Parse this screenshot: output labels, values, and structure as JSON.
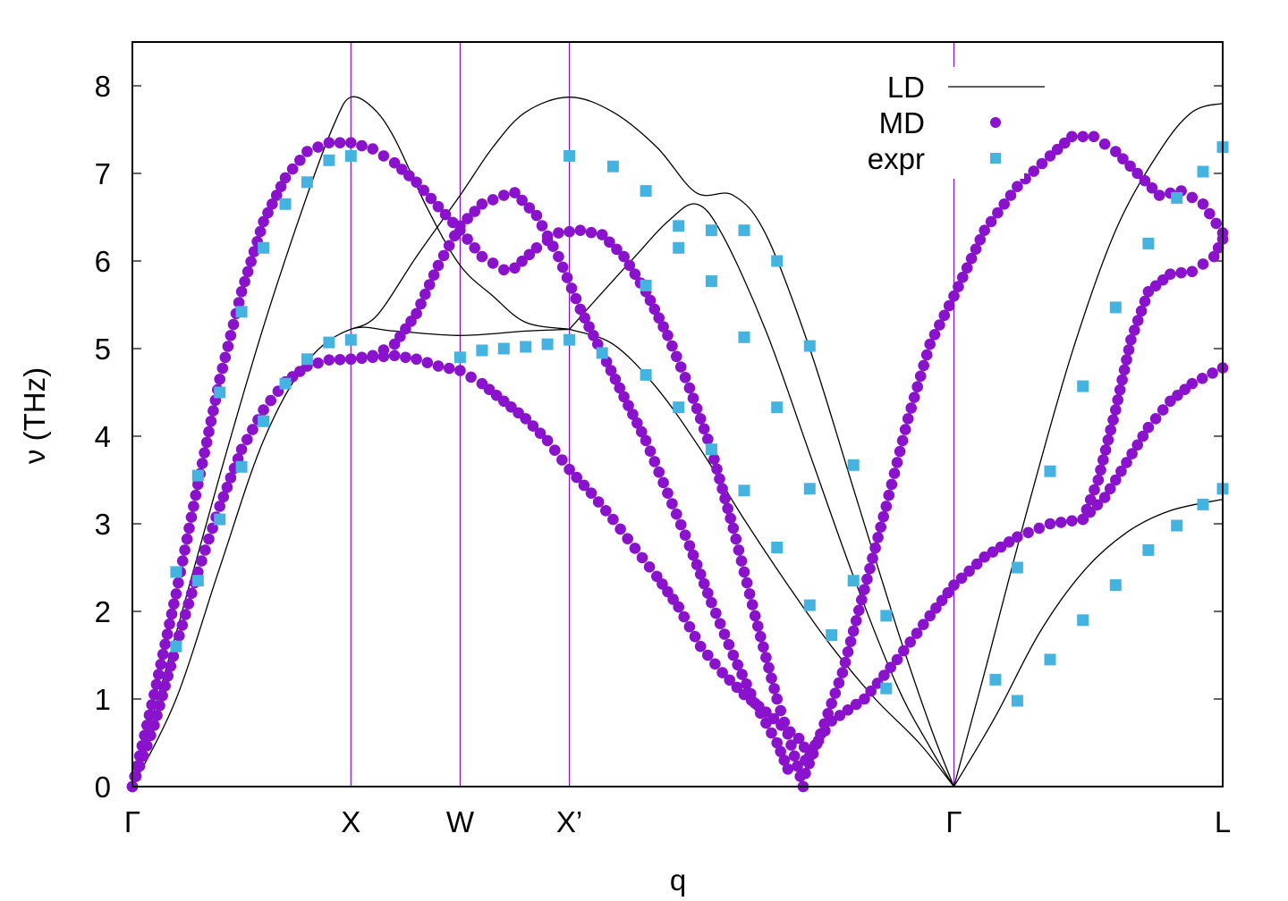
{
  "chart_data": {
    "type": "scatter",
    "title": "",
    "xlabel": "q",
    "ylabel": "ν (THz)",
    "ylim": [
      0,
      8.5
    ],
    "xlim": [
      0,
      4.99
    ],
    "x_ticks": [
      {
        "label": "Γ",
        "value": 0
      },
      {
        "label": "X",
        "value": 1.0
      },
      {
        "label": "W",
        "value": 1.5
      },
      {
        "label": "X’",
        "value": 2.0
      },
      {
        "label": "Γ",
        "value": 3.76
      },
      {
        "label": "L",
        "value": 4.99
      }
    ],
    "y_ticks": [
      0,
      1,
      2,
      3,
      4,
      5,
      6,
      7,
      8
    ],
    "vlines": [
      1.0,
      1.5,
      2.0,
      3.76
    ],
    "colors": {
      "LD": "#000000",
      "MD": "#8a12cc",
      "expr": "#45b3e0",
      "vline": "#8a12cc"
    },
    "legend": {
      "position": "top-right",
      "entries": [
        {
          "label": "LD",
          "marker": "line"
        },
        {
          "label": "MD",
          "marker": "circle"
        },
        {
          "label": "expr",
          "marker": "square"
        }
      ]
    },
    "series": [
      {
        "name": "LD",
        "kind": "line",
        "branches": [
          [
            [
              0,
              0
            ],
            [
              0.2,
              1.75
            ],
            [
              0.4,
              3.55
            ],
            [
              0.6,
              5.25
            ],
            [
              0.8,
              6.75
            ],
            [
              0.93,
              7.6
            ],
            [
              1.0,
              7.87
            ],
            [
              1.1,
              7.75
            ],
            [
              1.2,
              7.4
            ],
            [
              1.35,
              6.6
            ],
            [
              1.5,
              5.95
            ],
            [
              1.65,
              5.6
            ],
            [
              1.8,
              5.3
            ],
            [
              2.0,
              5.22
            ]
          ],
          [
            [
              0,
              0
            ],
            [
              0.2,
              1.0
            ],
            [
              0.4,
              2.5
            ],
            [
              0.6,
              3.95
            ],
            [
              0.8,
              4.85
            ],
            [
              1.0,
              5.22
            ],
            [
              1.2,
              5.2
            ],
            [
              1.5,
              5.15
            ],
            [
              1.8,
              5.2
            ],
            [
              2.0,
              5.22
            ]
          ],
          [
            [
              1.0,
              5.22
            ],
            [
              1.12,
              5.38
            ],
            [
              1.3,
              6.05
            ],
            [
              1.5,
              6.75
            ],
            [
              1.65,
              7.3
            ],
            [
              1.8,
              7.7
            ],
            [
              2.0,
              7.87
            ],
            [
              2.2,
              7.7
            ],
            [
              2.4,
              7.3
            ],
            [
              2.58,
              6.78
            ],
            [
              2.75,
              6.75
            ],
            [
              2.9,
              6.3
            ],
            [
              3.1,
              5.0
            ],
            [
              3.3,
              3.4
            ],
            [
              3.5,
              1.8
            ],
            [
              3.65,
              0.7
            ],
            [
              3.76,
              0
            ]
          ],
          [
            [
              2.0,
              5.22
            ],
            [
              2.1,
              5.5
            ],
            [
              2.3,
              6.05
            ],
            [
              2.45,
              6.45
            ],
            [
              2.58,
              6.65
            ],
            [
              2.7,
              6.3
            ],
            [
              2.9,
              5.2
            ],
            [
              3.1,
              3.8
            ],
            [
              3.3,
              2.4
            ],
            [
              3.5,
              1.15
            ],
            [
              3.65,
              0.45
            ],
            [
              3.76,
              0
            ]
          ],
          [
            [
              2.0,
              5.22
            ],
            [
              2.2,
              5.05
            ],
            [
              2.4,
              4.55
            ],
            [
              2.6,
              3.85
            ],
            [
              2.8,
              3.05
            ],
            [
              3.0,
              2.3
            ],
            [
              3.2,
              1.6
            ],
            [
              3.4,
              1.0
            ],
            [
              3.6,
              0.5
            ],
            [
              3.76,
              0
            ]
          ],
          [
            [
              3.76,
              0
            ],
            [
              3.9,
              1.3
            ],
            [
              4.1,
              3.2
            ],
            [
              4.3,
              4.95
            ],
            [
              4.5,
              6.35
            ],
            [
              4.7,
              7.25
            ],
            [
              4.85,
              7.7
            ],
            [
              4.99,
              7.8
            ]
          ],
          [
            [
              3.76,
              0
            ],
            [
              3.95,
              0.8
            ],
            [
              4.15,
              1.75
            ],
            [
              4.35,
              2.45
            ],
            [
              4.55,
              2.9
            ],
            [
              4.75,
              3.15
            ],
            [
              4.99,
              3.28
            ]
          ]
        ]
      },
      {
        "name": "MD",
        "kind": "dots",
        "branches": [
          [
            [
              0,
              0
            ],
            [
              0.1,
              1.05
            ],
            [
              0.2,
              2.2
            ],
            [
              0.3,
              3.45
            ],
            [
              0.4,
              4.65
            ],
            [
              0.5,
              5.65
            ],
            [
              0.6,
              6.45
            ],
            [
              0.7,
              6.95
            ],
            [
              0.8,
              7.25
            ],
            [
              0.9,
              7.35
            ],
            [
              1.0,
              7.35
            ],
            [
              1.1,
              7.28
            ],
            [
              1.2,
              7.12
            ],
            [
              1.3,
              6.9
            ],
            [
              1.4,
              6.62
            ],
            [
              1.5,
              6.35
            ],
            [
              1.6,
              6.05
            ],
            [
              1.7,
              5.9
            ],
            [
              1.75,
              5.92
            ],
            [
              1.85,
              6.15
            ],
            [
              1.95,
              6.32
            ],
            [
              2.05,
              6.35
            ],
            [
              2.15,
              6.3
            ],
            [
              2.25,
              6.05
            ],
            [
              2.35,
              5.65
            ],
            [
              2.45,
              5.15
            ],
            [
              2.55,
              4.55
            ],
            [
              2.65,
              3.85
            ],
            [
              2.75,
              2.95
            ],
            [
              2.85,
              1.95
            ],
            [
              2.95,
              1.0
            ],
            [
              3.0,
              0.6
            ],
            [
              3.03,
              0.35
            ],
            [
              3.07,
              0
            ]
          ],
          [
            [
              0,
              0
            ],
            [
              0.1,
              0.7
            ],
            [
              0.2,
              1.6
            ],
            [
              0.3,
              2.45
            ],
            [
              0.4,
              3.2
            ],
            [
              0.5,
              3.85
            ],
            [
              0.6,
              4.3
            ],
            [
              0.7,
              4.62
            ],
            [
              0.8,
              4.8
            ],
            [
              0.9,
              4.87
            ],
            [
              1.0,
              4.88
            ],
            [
              1.1,
              4.9
            ],
            [
              1.2,
              4.92
            ],
            [
              1.3,
              4.88
            ],
            [
              1.4,
              4.8
            ],
            [
              1.5,
              4.75
            ],
            [
              1.6,
              4.6
            ],
            [
              1.7,
              4.4
            ],
            [
              1.8,
              4.2
            ],
            [
              1.9,
              3.95
            ],
            [
              2.0,
              3.62
            ],
            [
              2.1,
              3.35
            ],
            [
              2.2,
              3.05
            ],
            [
              2.3,
              2.72
            ],
            [
              2.4,
              2.4
            ],
            [
              2.5,
              2.05
            ],
            [
              2.6,
              1.6
            ],
            [
              2.7,
              1.3
            ],
            [
              2.8,
              1.05
            ],
            [
              2.9,
              0.85
            ],
            [
              2.97,
              0.7
            ],
            [
              3.05,
              0.55
            ],
            [
              3.1,
              0.35
            ],
            [
              3.15,
              0.6
            ]
          ],
          [
            [
              1.0,
              4.88
            ],
            [
              1.1,
              4.92
            ],
            [
              1.2,
              5.05
            ],
            [
              1.3,
              5.4
            ],
            [
              1.4,
              5.95
            ],
            [
              1.5,
              6.4
            ],
            [
              1.6,
              6.65
            ],
            [
              1.7,
              6.75
            ],
            [
              1.75,
              6.78
            ],
            [
              1.85,
              6.52
            ],
            [
              1.95,
              6.05
            ],
            [
              2.05,
              5.45
            ],
            [
              2.15,
              4.95
            ],
            [
              2.25,
              4.45
            ],
            [
              2.35,
              3.95
            ],
            [
              2.45,
              3.35
            ],
            [
              2.55,
              2.75
            ],
            [
              2.65,
              2.1
            ],
            [
              2.75,
              1.5
            ],
            [
              2.85,
              0.95
            ],
            [
              2.95,
              0.5
            ],
            [
              3.0,
              0.2
            ]
          ],
          [
            [
              3.08,
              0.15
            ],
            [
              3.15,
              0.6
            ],
            [
              3.25,
              1.3
            ],
            [
              3.35,
              2.25
            ],
            [
              3.45,
              3.2
            ],
            [
              3.55,
              4.2
            ],
            [
              3.65,
              5.05
            ],
            [
              3.76,
              5.6
            ],
            [
              3.9,
              6.35
            ],
            [
              4.05,
              6.85
            ],
            [
              4.2,
              7.2
            ],
            [
              4.3,
              7.42
            ],
            [
              4.4,
              7.42
            ],
            [
              4.5,
              7.25
            ],
            [
              4.6,
              7.0
            ],
            [
              4.7,
              6.75
            ],
            [
              4.8,
              6.8
            ],
            [
              4.9,
              6.65
            ],
            [
              4.99,
              6.32
            ]
          ],
          [
            [
              3.08,
              0.3
            ],
            [
              3.2,
              0.75
            ],
            [
              3.35,
              1.0
            ],
            [
              3.5,
              1.45
            ],
            [
              3.65,
              1.95
            ],
            [
              3.76,
              2.3
            ],
            [
              3.9,
              2.62
            ],
            [
              4.05,
              2.85
            ],
            [
              4.2,
              3.0
            ],
            [
              4.35,
              3.05
            ],
            [
              4.45,
              3.3
            ],
            [
              4.55,
              3.7
            ],
            [
              4.65,
              4.1
            ],
            [
              4.75,
              4.4
            ],
            [
              4.85,
              4.6
            ],
            [
              4.99,
              4.78
            ]
          ],
          [
            [
              4.35,
              3.05
            ],
            [
              4.42,
              3.5
            ],
            [
              4.5,
              4.3
            ],
            [
              4.57,
              5.1
            ],
            [
              4.65,
              5.65
            ],
            [
              4.75,
              5.85
            ],
            [
              4.85,
              5.88
            ],
            [
              4.95,
              6.05
            ],
            [
              4.99,
              6.25
            ]
          ]
        ]
      },
      {
        "name": "expr",
        "kind": "squares",
        "points": [
          [
            0.2,
            1.6
          ],
          [
            0.2,
            2.45
          ],
          [
            0.3,
            2.35
          ],
          [
            0.3,
            3.55
          ],
          [
            0.4,
            3.05
          ],
          [
            0.4,
            4.5
          ],
          [
            0.5,
            3.65
          ],
          [
            0.5,
            5.42
          ],
          [
            0.6,
            4.17
          ],
          [
            0.6,
            6.15
          ],
          [
            0.7,
            4.6
          ],
          [
            0.7,
            6.65
          ],
          [
            0.8,
            4.88
          ],
          [
            0.8,
            6.9
          ],
          [
            0.9,
            5.07
          ],
          [
            0.9,
            7.15
          ],
          [
            1.0,
            5.1
          ],
          [
            1.0,
            7.2
          ],
          [
            1.5,
            4.9
          ],
          [
            1.6,
            4.98
          ],
          [
            1.7,
            5.0
          ],
          [
            1.8,
            5.02
          ],
          [
            1.9,
            5.05
          ],
          [
            2.0,
            5.1
          ],
          [
            2.0,
            7.2
          ],
          [
            2.15,
            4.95
          ],
          [
            2.2,
            7.08
          ],
          [
            2.35,
            4.7
          ],
          [
            2.35,
            6.8
          ],
          [
            2.35,
            5.72
          ],
          [
            2.5,
            4.33
          ],
          [
            2.5,
            6.15
          ],
          [
            2.5,
            6.4
          ],
          [
            2.65,
            3.85
          ],
          [
            2.65,
            5.77
          ],
          [
            2.65,
            6.35
          ],
          [
            2.8,
            3.38
          ],
          [
            2.8,
            5.13
          ],
          [
            2.8,
            6.35
          ],
          [
            2.95,
            2.73
          ],
          [
            2.95,
            4.33
          ],
          [
            2.95,
            6.0
          ],
          [
            3.1,
            2.07
          ],
          [
            3.1,
            3.4
          ],
          [
            3.1,
            5.03
          ],
          [
            3.2,
            1.73
          ],
          [
            3.3,
            2.35
          ],
          [
            3.3,
            3.67
          ],
          [
            3.45,
            1.12
          ],
          [
            3.45,
            1.95
          ],
          [
            3.95,
            1.22
          ],
          [
            4.05,
            0.98
          ],
          [
            4.05,
            2.5
          ],
          [
            4.2,
            1.45
          ],
          [
            4.2,
            3.6
          ],
          [
            4.35,
            1.9
          ],
          [
            4.35,
            4.57
          ],
          [
            4.5,
            2.3
          ],
          [
            4.5,
            5.47
          ],
          [
            4.65,
            2.7
          ],
          [
            4.65,
            6.2
          ],
          [
            4.78,
            2.98
          ],
          [
            4.78,
            6.72
          ],
          [
            4.9,
            3.22
          ],
          [
            4.9,
            7.02
          ],
          [
            4.99,
            3.4
          ],
          [
            4.99,
            7.3
          ]
        ]
      }
    ]
  }
}
